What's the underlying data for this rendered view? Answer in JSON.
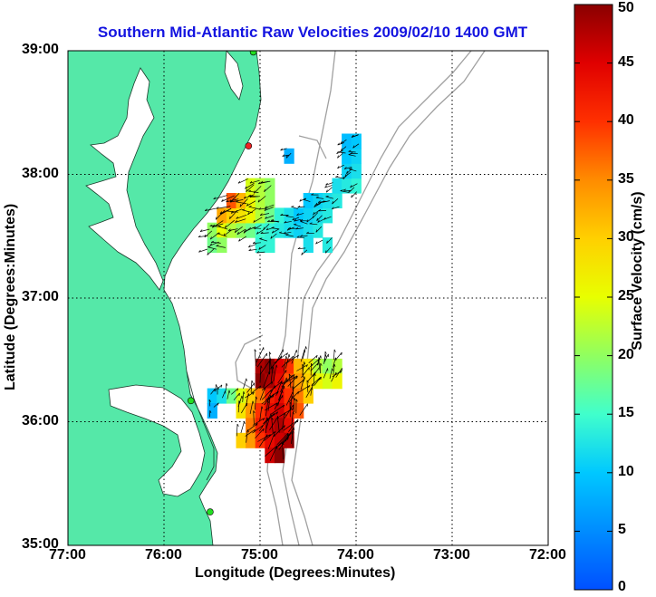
{
  "title": "Southern Mid-Atlantic Raw Velocities 2009/02/10 1400 GMT",
  "xlabel": "Longitude (Degrees:Minutes)",
  "ylabel": "Latitude (Degrees:Minutes)",
  "colorbar_label": "Surface Velocity (cm/s)",
  "x_ticks": [
    "77:00",
    "76:00",
    "75:00",
    "74:00",
    "73:00",
    "72:00"
  ],
  "y_ticks": [
    "39:00",
    "38:00",
    "37:00",
    "36:00",
    "35:00"
  ],
  "colorbar_ticks": [
    "50",
    "45",
    "40",
    "35",
    "30",
    "25",
    "20",
    "15",
    "10",
    "5",
    "0"
  ],
  "colors": {
    "land": "#55e8a8",
    "title": "#1414e0",
    "bathymetry": "#a0a0a0",
    "station": "#22dd22",
    "station_alt": "#ee2222"
  },
  "chart_data": {
    "type": "map-vector-field",
    "x_range": [
      -77.0,
      -72.0
    ],
    "y_range": [
      35.0,
      39.0
    ],
    "colorbar_range": [
      0,
      50
    ],
    "grid": true,
    "colorbar": "right",
    "stations": [
      {
        "lon": -75.07,
        "lat": 38.99,
        "color": "green"
      },
      {
        "lon": -75.12,
        "lat": 38.23,
        "color": "red"
      },
      {
        "lon": -75.72,
        "lat": 36.17,
        "color": "green"
      },
      {
        "lon": -75.52,
        "lat": 35.27,
        "color": "green"
      }
    ],
    "fields": [
      {
        "region": "north",
        "cells": [
          {
            "lon": -75.5,
            "lat": 37.55,
            "v": 20
          },
          {
            "lon": -75.4,
            "lat": 37.55,
            "v": 25
          },
          {
            "lon": -75.3,
            "lat": 37.55,
            "v": 22
          },
          {
            "lon": -75.2,
            "lat": 37.55,
            "v": 20
          },
          {
            "lon": -75.1,
            "lat": 37.55,
            "v": 18
          },
          {
            "lon": -75.0,
            "lat": 37.55,
            "v": 15
          },
          {
            "lon": -74.9,
            "lat": 37.55,
            "v": 14
          },
          {
            "lon": -74.8,
            "lat": 37.55,
            "v": 13
          },
          {
            "lon": -74.7,
            "lat": 37.55,
            "v": 12
          },
          {
            "lon": -74.6,
            "lat": 37.55,
            "v": 11
          },
          {
            "lon": -74.5,
            "lat": 37.55,
            "v": 12
          },
          {
            "lon": -74.4,
            "lat": 37.55,
            "v": 13
          },
          {
            "lon": -75.4,
            "lat": 37.67,
            "v": 33
          },
          {
            "lon": -75.3,
            "lat": 37.67,
            "v": 30
          },
          {
            "lon": -75.2,
            "lat": 37.67,
            "v": 28
          },
          {
            "lon": -75.1,
            "lat": 37.67,
            "v": 26
          },
          {
            "lon": -75.0,
            "lat": 37.67,
            "v": 22
          },
          {
            "lon": -74.9,
            "lat": 37.67,
            "v": 18
          },
          {
            "lon": -74.8,
            "lat": 37.67,
            "v": 14
          },
          {
            "lon": -74.7,
            "lat": 37.67,
            "v": 12
          },
          {
            "lon": -74.6,
            "lat": 37.67,
            "v": 10
          },
          {
            "lon": -74.5,
            "lat": 37.67,
            "v": 11
          },
          {
            "lon": -74.4,
            "lat": 37.67,
            "v": 12
          },
          {
            "lon": -74.3,
            "lat": 37.67,
            "v": 13
          },
          {
            "lon": -75.3,
            "lat": 37.79,
            "v": 38
          },
          {
            "lon": -75.2,
            "lat": 37.79,
            "v": 32
          },
          {
            "lon": -75.1,
            "lat": 37.79,
            "v": 26
          },
          {
            "lon": -75.0,
            "lat": 37.79,
            "v": 22
          },
          {
            "lon": -74.9,
            "lat": 37.79,
            "v": 20
          },
          {
            "lon": -74.5,
            "lat": 37.79,
            "v": 10
          },
          {
            "lon": -74.4,
            "lat": 37.79,
            "v": 11
          },
          {
            "lon": -74.3,
            "lat": 37.79,
            "v": 12
          },
          {
            "lon": -74.2,
            "lat": 37.79,
            "v": 13
          },
          {
            "lon": -75.1,
            "lat": 37.91,
            "v": 24
          },
          {
            "lon": -75.0,
            "lat": 37.91,
            "v": 22
          },
          {
            "lon": -74.9,
            "lat": 37.91,
            "v": 20
          },
          {
            "lon": -74.2,
            "lat": 37.91,
            "v": 12
          },
          {
            "lon": -74.1,
            "lat": 37.91,
            "v": 13
          },
          {
            "lon": -74.0,
            "lat": 37.91,
            "v": 14
          },
          {
            "lon": -74.1,
            "lat": 38.03,
            "v": 11
          },
          {
            "lon": -74.0,
            "lat": 38.03,
            "v": 12
          },
          {
            "lon": -74.1,
            "lat": 38.15,
            "v": 10
          },
          {
            "lon": -74.0,
            "lat": 38.15,
            "v": 11
          },
          {
            "lon": -74.1,
            "lat": 38.27,
            "v": 9
          },
          {
            "lon": -74.0,
            "lat": 38.27,
            "v": 10
          },
          {
            "lon": -74.7,
            "lat": 38.15,
            "v": 8
          },
          {
            "lon": -75.5,
            "lat": 37.43,
            "v": 18
          },
          {
            "lon": -75.4,
            "lat": 37.43,
            "v": 20
          },
          {
            "lon": -75.0,
            "lat": 37.43,
            "v": 14
          },
          {
            "lon": -74.9,
            "lat": 37.43,
            "v": 14
          },
          {
            "lon": -74.5,
            "lat": 37.43,
            "v": 12
          },
          {
            "lon": -74.3,
            "lat": 37.43,
            "v": 13
          }
        ]
      },
      {
        "region": "south",
        "cells": [
          {
            "lon": -75.0,
            "lat": 36.45,
            "v": 48
          },
          {
            "lon": -74.9,
            "lat": 36.45,
            "v": 50
          },
          {
            "lon": -74.8,
            "lat": 36.45,
            "v": 45
          },
          {
            "lon": -74.7,
            "lat": 36.45,
            "v": 40
          },
          {
            "lon": -74.6,
            "lat": 36.45,
            "v": 32
          },
          {
            "lon": -74.5,
            "lat": 36.45,
            "v": 28
          },
          {
            "lon": -74.4,
            "lat": 36.45,
            "v": 22
          },
          {
            "lon": -74.3,
            "lat": 36.45,
            "v": 20
          },
          {
            "lon": -74.2,
            "lat": 36.45,
            "v": 22
          },
          {
            "lon": -75.0,
            "lat": 36.33,
            "v": 50
          },
          {
            "lon": -74.9,
            "lat": 36.33,
            "v": 48
          },
          {
            "lon": -74.8,
            "lat": 36.33,
            "v": 44
          },
          {
            "lon": -74.7,
            "lat": 36.33,
            "v": 38
          },
          {
            "lon": -74.6,
            "lat": 36.33,
            "v": 34
          },
          {
            "lon": -74.5,
            "lat": 36.33,
            "v": 30
          },
          {
            "lon": -74.4,
            "lat": 36.33,
            "v": 26
          },
          {
            "lon": -74.3,
            "lat": 36.33,
            "v": 24
          },
          {
            "lon": -74.2,
            "lat": 36.33,
            "v": 26
          },
          {
            "lon": -75.5,
            "lat": 36.21,
            "v": 10
          },
          {
            "lon": -75.4,
            "lat": 36.21,
            "v": 12
          },
          {
            "lon": -75.3,
            "lat": 36.21,
            "v": 18
          },
          {
            "lon": -75.2,
            "lat": 36.21,
            "v": 24
          },
          {
            "lon": -75.1,
            "lat": 36.21,
            "v": 30
          },
          {
            "lon": -75.0,
            "lat": 36.21,
            "v": 36
          },
          {
            "lon": -74.9,
            "lat": 36.21,
            "v": 42
          },
          {
            "lon": -74.8,
            "lat": 36.21,
            "v": 44
          },
          {
            "lon": -74.7,
            "lat": 36.21,
            "v": 40
          },
          {
            "lon": -74.6,
            "lat": 36.21,
            "v": 36
          },
          {
            "lon": -74.5,
            "lat": 36.21,
            "v": 30
          },
          {
            "lon": -75.2,
            "lat": 36.09,
            "v": 28
          },
          {
            "lon": -75.1,
            "lat": 36.09,
            "v": 34
          },
          {
            "lon": -75.0,
            "lat": 36.09,
            "v": 40
          },
          {
            "lon": -74.9,
            "lat": 36.09,
            "v": 44
          },
          {
            "lon": -74.8,
            "lat": 36.09,
            "v": 46
          },
          {
            "lon": -74.7,
            "lat": 36.09,
            "v": 42
          },
          {
            "lon": -74.6,
            "lat": 36.09,
            "v": 38
          },
          {
            "lon": -75.1,
            "lat": 35.97,
            "v": 36
          },
          {
            "lon": -75.0,
            "lat": 35.97,
            "v": 42
          },
          {
            "lon": -74.9,
            "lat": 35.97,
            "v": 46
          },
          {
            "lon": -74.8,
            "lat": 35.97,
            "v": 48
          },
          {
            "lon": -74.7,
            "lat": 35.97,
            "v": 44
          },
          {
            "lon": -75.2,
            "lat": 35.85,
            "v": 30
          },
          {
            "lon": -75.1,
            "lat": 35.85,
            "v": 34
          },
          {
            "lon": -75.0,
            "lat": 35.85,
            "v": 40
          },
          {
            "lon": -74.9,
            "lat": 35.85,
            "v": 44
          },
          {
            "lon": -74.8,
            "lat": 35.85,
            "v": 46
          },
          {
            "lon": -74.7,
            "lat": 35.85,
            "v": 48
          },
          {
            "lon": -74.9,
            "lat": 35.73,
            "v": 46
          },
          {
            "lon": -74.8,
            "lat": 35.73,
            "v": 50
          },
          {
            "lon": -75.5,
            "lat": 36.09,
            "v": 8
          }
        ]
      }
    ]
  }
}
